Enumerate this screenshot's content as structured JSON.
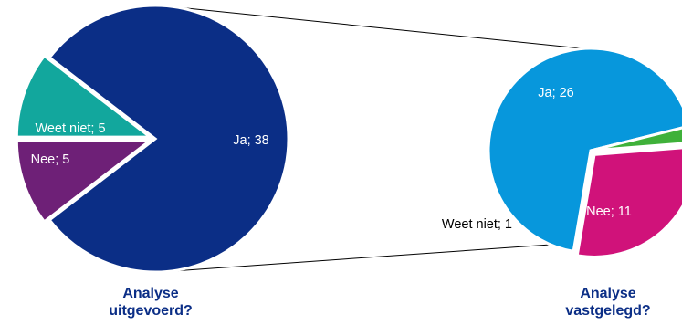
{
  "chart_data": [
    {
      "type": "pie",
      "title_line1": "Analyse",
      "title_line2": "uitgevoerd?",
      "slices": [
        {
          "label": "Ja",
          "value": 38,
          "color": "#0b2e86",
          "text": "Ja; 38",
          "label_color": "#ffffff"
        },
        {
          "label": "Weet niet",
          "value": 5,
          "color": "#12a79d",
          "text": "Weet niet; 5",
          "label_color": "#ffffff"
        },
        {
          "label": "Nee",
          "value": 5,
          "color": "#6e2077",
          "text": "Nee; 5",
          "label_color": "#ffffff"
        }
      ]
    },
    {
      "type": "pie",
      "title_line1": "Analyse",
      "title_line2": "vastgelegd?",
      "slices": [
        {
          "label": "Ja",
          "value": 26,
          "color": "#0797dc",
          "text": "Ja; 26",
          "label_color": "#ffffff"
        },
        {
          "label": "Nee",
          "value": 11,
          "color": "#d0127a",
          "text": "Nee; 11",
          "label_color": "#ffffff"
        },
        {
          "label": "Weet niet",
          "value": 1,
          "color": "#3fb13a",
          "text": "Weet niet; 1",
          "label_color": "#000000"
        }
      ]
    }
  ],
  "colors": {
    "title": "#0b2e86",
    "connector": "#000000"
  }
}
